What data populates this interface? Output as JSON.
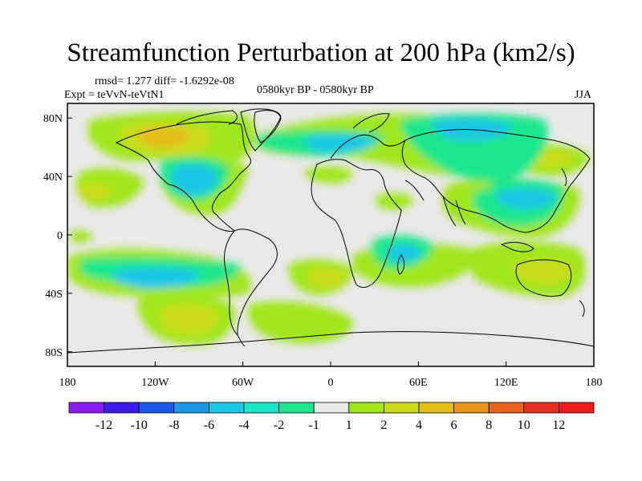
{
  "title": "Streamfunction Perturbation at 200 hPa (km2/s)",
  "stats": "rmsd= 1.277  diff= -1.6292e-08",
  "experiment": "Expt = teVvN-teVtN1",
  "period": "0580kyr BP - 0580kyr BP",
  "season": "JJA",
  "axes": {
    "lat_ticks": [
      "80N",
      "40N",
      "0",
      "40S",
      "80S"
    ],
    "lon_ticks": [
      "180",
      "120W",
      "60W",
      "0",
      "60E",
      "120E",
      "180"
    ]
  },
  "colorbar": {
    "labels": [
      "-12",
      "-10",
      "-8",
      "-6",
      "-4",
      "-2",
      "-1",
      "1",
      "2",
      "4",
      "6",
      "8",
      "10",
      "12"
    ],
    "colors": [
      "#8a1cf0",
      "#3c1ce6",
      "#1c5ae6",
      "#1c96e6",
      "#1cc8e6",
      "#1ce6c8",
      "#1ee68c",
      "#e8e8e8",
      "#a0e61c",
      "#c8dc1c",
      "#e6be1c",
      "#e6961c",
      "#e6641c",
      "#e6321c",
      "#f01c1c"
    ]
  },
  "colors": {
    "background": "#e8e8e8",
    "coastline": "#000000"
  }
}
